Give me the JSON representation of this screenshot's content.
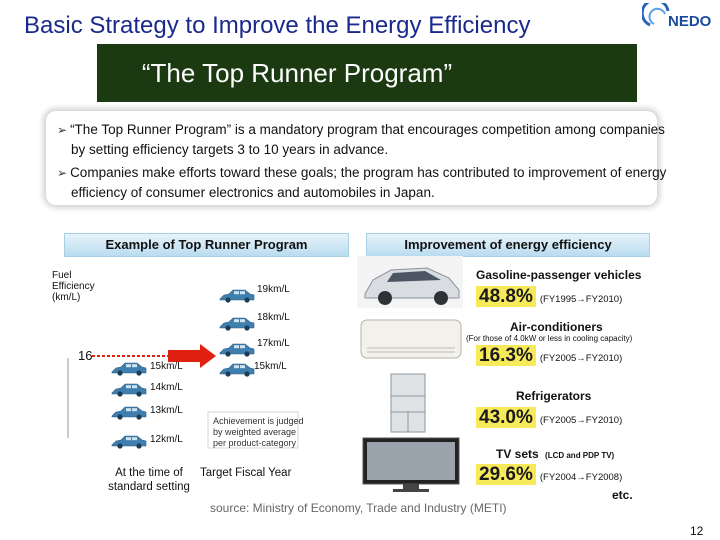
{
  "header": {
    "title": "Basic Strategy to Improve the Energy Efficiency",
    "logo_text": "NEDO",
    "banner": "“The Top Runner Program”"
  },
  "bullets": [
    {
      "lines": [
        "“The Top Runner Program” is a mandatory program that encourages competition among companies",
        "by setting efficiency targets  3 to 10 years in advance."
      ]
    },
    {
      "lines": [
        "Companies make efforts toward these goals; the program has contributed to improvement of energy",
        "efficiency of consumer electronics and automobiles in Japan."
      ]
    }
  ],
  "left_panel": {
    "header": "Example of Top Runner Program",
    "y_label": [
      "Fuel",
      "Efficiency",
      "(km/L)"
    ],
    "arrow_value": "16",
    "current_values": [
      "15km/L",
      "14km/L",
      "13km/L",
      "12km/L"
    ],
    "target_values": [
      "19km/L",
      "18km/L",
      "17km/L",
      "15km/L"
    ],
    "note": [
      "Achievement is judged",
      "by weighted average",
      "per product-category"
    ],
    "time_label": [
      "At the time of",
      "standard setting"
    ],
    "target_label": "Target Fiscal Year"
  },
  "right_panel": {
    "header": "Improvement of energy efficiency",
    "items": [
      {
        "name": "Gasoline-passenger vehicles",
        "sub": "",
        "percent": "48.8%",
        "range": "(FY1995→FY2010)"
      },
      {
        "name": "Air-conditioners",
        "sub": "(For those of 4.0kW or less in cooling capacity)",
        "percent": "16.3%",
        "range": "(FY2005→FY2010)"
      },
      {
        "name": "Refrigerators",
        "sub": "",
        "percent": "43.0%",
        "range": "(FY2005→FY2010)"
      },
      {
        "name": "TV sets",
        "sub": "(LCD and PDP TV)",
        "percent": "29.6%",
        "range": "(FY2004→FY2008)"
      }
    ],
    "etc": "etc."
  },
  "source": "source: Ministry of Economy, Trade and Industry (METI)",
  "page_number": "12",
  "colors": {
    "title": "#1a2a8c",
    "banner_bg": "#1b3a12",
    "car": "#3f7fb0",
    "arrow": "#e02010",
    "highlight": "#f7ea5a"
  }
}
